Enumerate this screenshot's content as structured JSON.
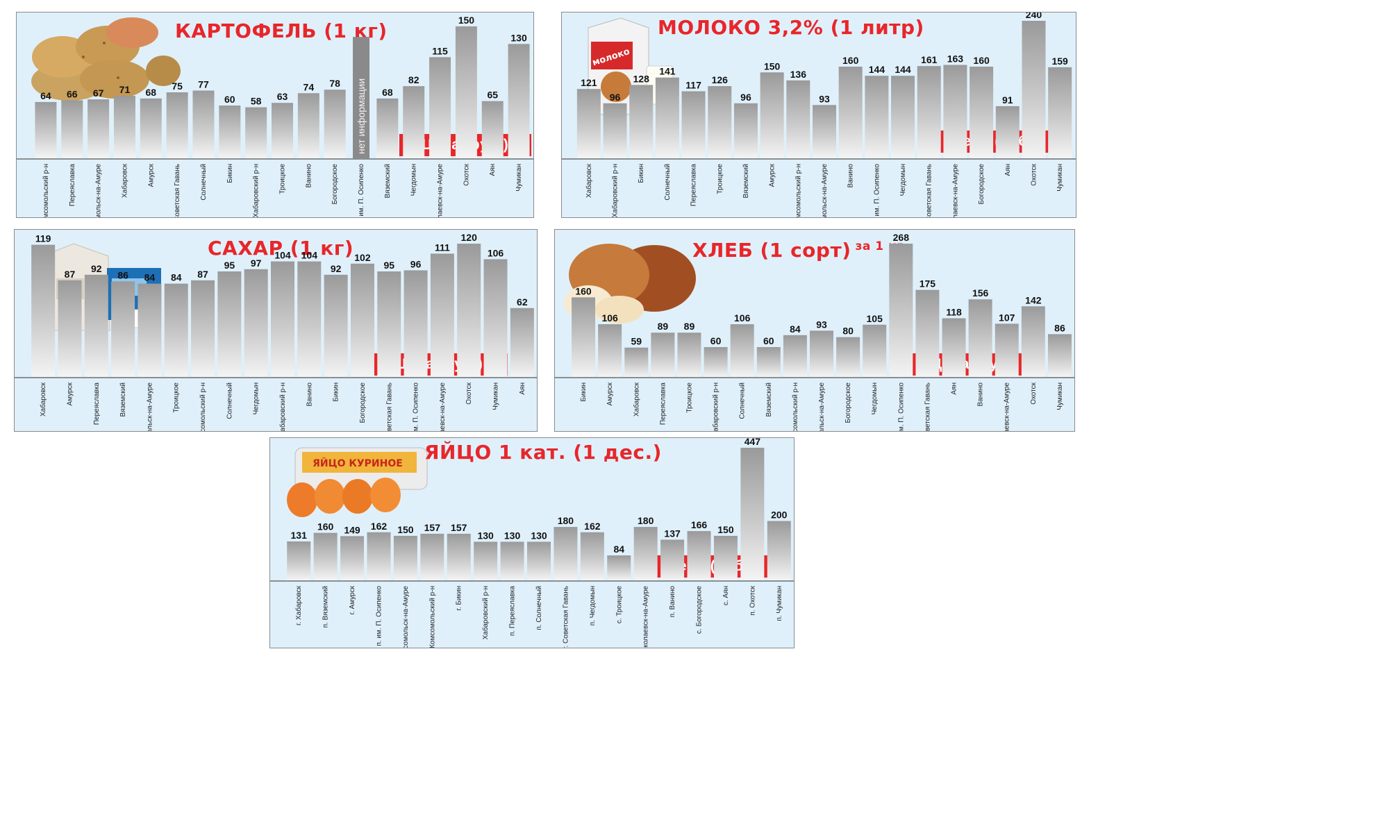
{
  "banner_label": "Цена (руб.)",
  "colors": {
    "title": "#e8262a",
    "banner": "#e8262a",
    "panel_bg": "#dff0fb"
  },
  "chart_data": [
    {
      "type": "bar",
      "title": "КАРТОФЕЛЬ (1 кг)",
      "image": "potatoes",
      "categories": [
        "Комсомольский р-н",
        "Переяславка",
        "Комсомольск-на-Амуре",
        "Хабаровск",
        "Амурск",
        "Советская Гавань",
        "Солнечный",
        "Бикин",
        "Хабаровский р-н",
        "Троицкое",
        "Ванино",
        "Богородское",
        "им. П. Осипенко",
        "Вяземский",
        "Чегдомын",
        "Николаевск-на-Амуре",
        "Охотск",
        "Аян",
        "Чумикан"
      ],
      "values": [
        64,
        66,
        67,
        71,
        68,
        75,
        77,
        60,
        58,
        63,
        74,
        78,
        null,
        68,
        82,
        115,
        150,
        65,
        130
      ],
      "annotations": [
        {
          "category": "им. П. Осипенко",
          "text": "нет информации"
        }
      ],
      "ylim": [
        0,
        150
      ]
    },
    {
      "type": "bar",
      "title": "МОЛОКО 3,2% (1 литр)",
      "image": "milk-carton",
      "categories": [
        "Хабаровск",
        "Хабаровский р-н",
        "Бикин",
        "Солнечный",
        "Переяславка",
        "Троицкое",
        "Вяземский",
        "Амурск",
        "Комсомольский р-н",
        "Комсомольск-на-Амуре",
        "Ванино",
        "им. П. Осипенко",
        "Чегдомын",
        "Советская Гавань",
        "Николаевск-на-Амуре",
        "Богородское",
        "Аян",
        "Охотск",
        "Чумикан"
      ],
      "values": [
        121,
        96,
        128,
        141,
        117,
        126,
        96,
        150,
        136,
        93,
        160,
        144,
        144,
        161,
        163,
        160,
        91,
        240,
        159
      ],
      "ylim": [
        0,
        240
      ]
    },
    {
      "type": "bar",
      "title": "САХАР (1 кг)",
      "image": "sugar",
      "categories": [
        "Хабаровск",
        "Амурск",
        "Переяславка",
        "Вяземский",
        "Комсомольск-на-Амуре",
        "Троицкое",
        "Комсомольский р-н",
        "Солнечный",
        "Чегдомын",
        "Хабаровский р-н",
        "Ванино",
        "Бикин",
        "Богородское",
        "Советская Гавань",
        "им. П. Осипенко",
        "Николаевск-на-Амуре",
        "Охотск",
        "Чумикан",
        "Аян"
      ],
      "values": [
        119,
        87,
        92,
        86,
        84,
        84,
        87,
        95,
        97,
        104,
        104,
        92,
        102,
        95,
        96,
        111,
        120,
        106,
        62
      ],
      "ylim": [
        0,
        120
      ]
    },
    {
      "type": "bar",
      "title": "ХЛЕБ (1 сорт)",
      "title_suffix": "за 1 кг",
      "image": "bread",
      "categories": [
        "Бикин",
        "Амурск",
        "Хабаровск",
        "Переяславка",
        "Троицкое",
        "Хабаровский р-н",
        "Солнечный",
        "Вяземский",
        "Комсомольский р-н",
        "Комсомольск-на-Амуре",
        "Богородское",
        "Чегдомын",
        "им. П. Осипенко",
        "Советская Гавань",
        "Аян",
        "Ванино",
        "Николаевск-на-Амуре",
        "Охотск",
        "Чумикан"
      ],
      "values": [
        160,
        106,
        59,
        89,
        89,
        60,
        106,
        60,
        84,
        93,
        80,
        105,
        268,
        175,
        118,
        156,
        107,
        142,
        86
      ],
      "ylim": [
        0,
        268
      ]
    },
    {
      "type": "bar",
      "title": "ЯЙЦО 1 кат. (1 дес.)",
      "image": "eggs",
      "image_text": "ЯЙЦО КУРИНОЕ",
      "categories": [
        "г. Хабаровск",
        "п. Вяземский",
        "г. Амурск",
        "п. им. П. Осипенко",
        "г. Комсомольск-на-Амуре",
        "Комсомольский р-н",
        "г. Бикин",
        "Хабаровский р-н",
        "п. Переяславка",
        "п. Солнечный",
        "г. Советская Гавань",
        "п. Чегдомын",
        "с. Троицкое",
        "г. Николаевск-на-Амуре",
        "п. Ванино",
        "с. Богородское",
        "с. Аян",
        "п. Охотск",
        "п. Чумикан"
      ],
      "values": [
        131,
        160,
        149,
        162,
        150,
        157,
        157,
        130,
        130,
        130,
        180,
        162,
        84,
        180,
        137,
        166,
        150,
        447,
        200
      ],
      "ylim": [
        0,
        447
      ]
    }
  ]
}
